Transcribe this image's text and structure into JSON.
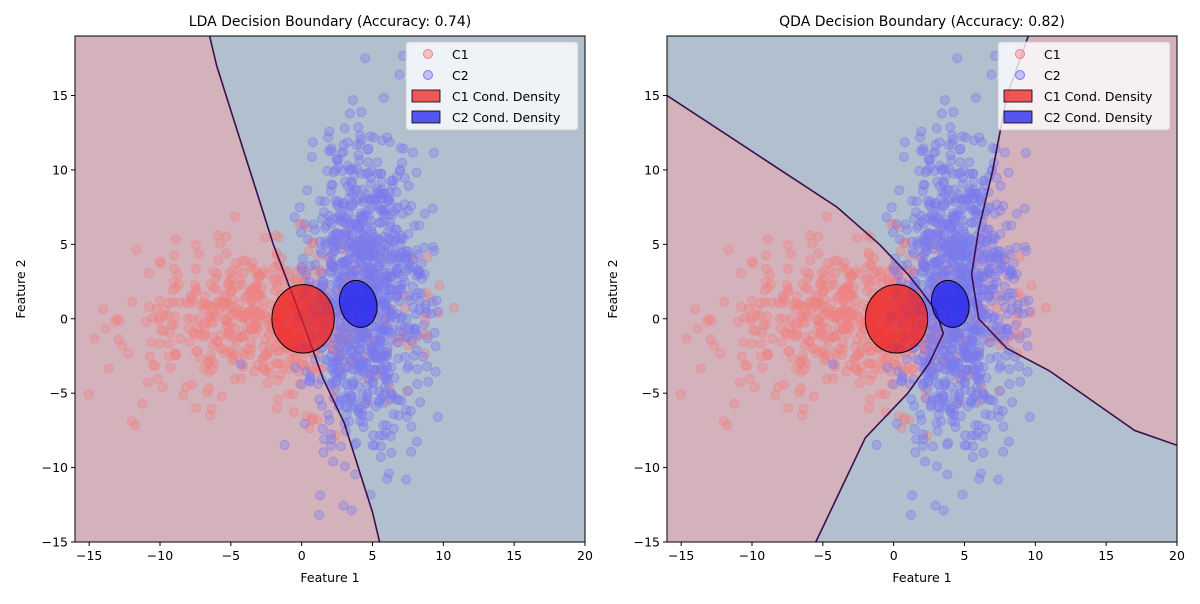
{
  "colors": {
    "c1_point": "#f08080",
    "c2_point": "#7a7aee",
    "c1_region": "#d4b2bc",
    "c2_region": "#b1bfcf",
    "c1_patch": "#ee2222",
    "c2_patch": "#2222ee",
    "boundary": "#3b0f4e"
  },
  "chart_data": [
    {
      "type": "scatter",
      "title": "LDA Decision Boundary (Accuracy: 0.74)",
      "xlabel": "Feature 1",
      "ylabel": "Feature 2",
      "xlim": [
        -16,
        20
      ],
      "ylim": [
        -15,
        19
      ],
      "xticks": [
        -15,
        -10,
        -5,
        0,
        5,
        10,
        15,
        20
      ],
      "yticks": [
        -15,
        -10,
        -5,
        0,
        5,
        10,
        15
      ],
      "legend_position": "top-right",
      "legend": [
        "C1",
        "C2",
        "C1 Cond. Density",
        "C2 Cond. Density"
      ],
      "series": [
        {
          "name": "C1",
          "approx_center": [
            -2,
            0
          ],
          "approx_std": [
            5,
            2.5
          ],
          "n": 600
        },
        {
          "name": "C2",
          "approx_center": [
            4.5,
            1.5
          ],
          "approx_std": [
            2,
            5
          ],
          "n": 1000
        }
      ],
      "density_ellipses": [
        {
          "name": "C1 Cond. Density",
          "center": [
            0.1,
            0.0
          ],
          "radii": [
            2.2,
            2.3
          ],
          "angle_deg": 0
        },
        {
          "name": "C2 Cond. Density",
          "center": [
            4.0,
            1.0
          ],
          "radii": [
            1.3,
            1.6
          ],
          "angle_deg": -15
        }
      ],
      "decision_boundary": [
        [
          -6.5,
          19
        ],
        [
          -6,
          17
        ],
        [
          -5,
          14
        ],
        [
          -4,
          11
        ],
        [
          -3,
          8
        ],
        [
          -2,
          5
        ],
        [
          0,
          0
        ],
        [
          1.5,
          -4
        ],
        [
          3,
          -7
        ],
        [
          4,
          -10
        ],
        [
          5,
          -13
        ],
        [
          5.5,
          -15
        ]
      ]
    },
    {
      "type": "scatter",
      "title": "QDA Decision Boundary (Accuracy: 0.82)",
      "xlabel": "Feature 1",
      "ylabel": "Feature 2",
      "xlim": [
        -16,
        20
      ],
      "ylim": [
        -15,
        19
      ],
      "xticks": [
        -15,
        -10,
        -5,
        0,
        5,
        10,
        15,
        20
      ],
      "yticks": [
        -15,
        -10,
        -5,
        0,
        5,
        10,
        15
      ],
      "legend_position": "top-right",
      "legend": [
        "C1",
        "C2",
        "C1 Cond. Density",
        "C2 Cond. Density"
      ],
      "series": [
        {
          "name": "C1",
          "approx_center": [
            -2,
            0
          ],
          "approx_std": [
            5,
            2.5
          ],
          "n": 600
        },
        {
          "name": "C2",
          "approx_center": [
            4.5,
            1.5
          ],
          "approx_std": [
            2,
            5
          ],
          "n": 1000
        }
      ],
      "density_ellipses": [
        {
          "name": "C1 Cond. Density",
          "center": [
            0.2,
            0.0
          ],
          "radii": [
            2.2,
            2.3
          ],
          "angle_deg": 0
        },
        {
          "name": "C2 Cond. Density",
          "center": [
            4.0,
            1.0
          ],
          "radii": [
            1.3,
            1.6
          ],
          "angle_deg": -15
        }
      ],
      "decision_boundary_upper": [
        [
          -16,
          15
        ],
        [
          -12,
          12.5
        ],
        [
          -8,
          10
        ],
        [
          -4,
          7.5
        ],
        [
          -1,
          5
        ],
        [
          1,
          3
        ],
        [
          2,
          1.8
        ],
        [
          3,
          0.5
        ],
        [
          3.5,
          -1
        ],
        [
          2.5,
          -3
        ],
        [
          1,
          -5
        ],
        [
          -2,
          -8
        ],
        [
          -4,
          -12
        ],
        [
          -5.5,
          -15
        ]
      ],
      "decision_boundary_lower": [
        [
          9.5,
          19
        ],
        [
          8,
          15
        ],
        [
          7,
          10
        ],
        [
          6,
          6
        ],
        [
          5.5,
          3
        ],
        [
          6,
          0
        ],
        [
          8,
          -2
        ],
        [
          11,
          -3.5
        ],
        [
          14,
          -5.5
        ],
        [
          17,
          -7.5
        ],
        [
          20,
          -8.5
        ]
      ]
    }
  ]
}
